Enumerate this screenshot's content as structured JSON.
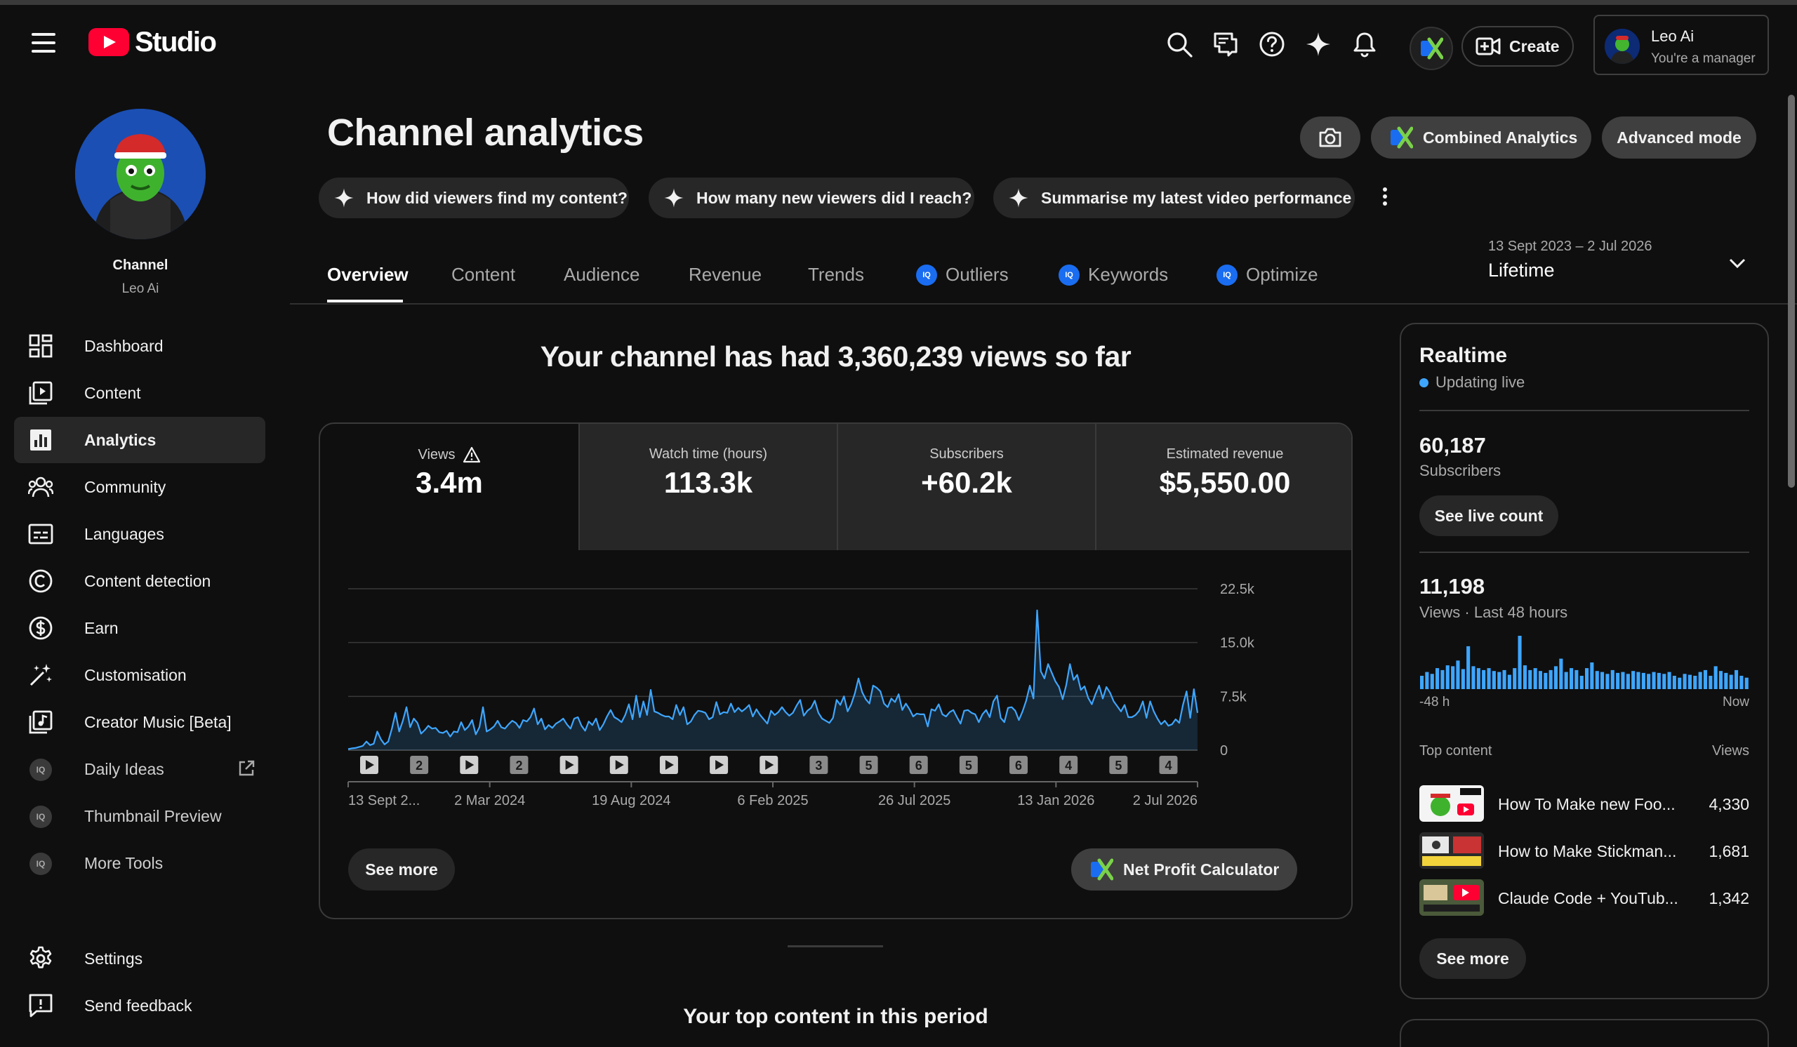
{
  "app": {
    "brand": "Studio"
  },
  "header": {
    "create_label": "Create",
    "account_name": "Leo Ai",
    "account_role": "You're a manager"
  },
  "channel": {
    "title": "Channel",
    "name": "Leo Ai"
  },
  "sidebar": {
    "items": [
      {
        "label": "Dashboard",
        "icon": "dashboard-icon"
      },
      {
        "label": "Content",
        "icon": "content-icon"
      },
      {
        "label": "Analytics",
        "icon": "analytics-icon",
        "active": true
      },
      {
        "label": "Community",
        "icon": "community-icon"
      },
      {
        "label": "Languages",
        "icon": "languages-icon"
      },
      {
        "label": "Content detection",
        "icon": "copyright-icon"
      },
      {
        "label": "Earn",
        "icon": "dollar-icon"
      },
      {
        "label": "Customisation",
        "icon": "magic-wand-icon"
      },
      {
        "label": "Creator Music [Beta]",
        "icon": "music-icon"
      },
      {
        "label": "Daily Ideas",
        "icon": "iq-icon"
      },
      {
        "label": "Thumbnail Preview",
        "icon": "iq-icon"
      },
      {
        "label": "More Tools",
        "icon": "iq-icon"
      },
      {
        "label": "Settings",
        "icon": "gear-icon"
      },
      {
        "label": "Send feedback",
        "icon": "feedback-icon"
      }
    ],
    "iq_text": "IQ"
  },
  "main": {
    "title": "Channel analytics",
    "combined_label": "Combined Analytics",
    "advanced_label": "Advanced mode",
    "suggestions": [
      "How did viewers find my content?",
      "How many new viewers did I reach?",
      "Summarise my latest video performance"
    ],
    "tabs": [
      "Overview",
      "Content",
      "Audience",
      "Revenue",
      "Trends",
      "Outliers",
      "Keywords",
      "Optimize"
    ],
    "date_range": {
      "range": "13 Sept 2023 – 2 Jul 2026",
      "label": "Lifetime"
    },
    "headline": "Your channel has had 3,360,239 views so far",
    "metrics": [
      {
        "label": "Views",
        "value": "3.4m",
        "warning": true
      },
      {
        "label": "Watch time (hours)",
        "value": "113.3k"
      },
      {
        "label": "Subscribers",
        "value": "+60.2k"
      },
      {
        "label": "Estimated revenue",
        "value": "$5,550.00"
      }
    ],
    "see_more": "See more",
    "npc_label": "Net Profit Calculator",
    "section_title": "Your top content in this period"
  },
  "chart_data": {
    "type": "area",
    "title": "",
    "xlabel": "",
    "ylabel": "",
    "y_ticks": [
      "22.5k",
      "15.0k",
      "7.5k",
      "0"
    ],
    "ylim": [
      0,
      22500
    ],
    "x_ticks": [
      "13 Sept 2...",
      "2 Mar 2024",
      "19 Aug 2024",
      "6 Feb 2025",
      "26 Jul 2025",
      "13 Jan 2026",
      "2 Jul 2026"
    ],
    "grid": true,
    "series": [
      {
        "color": "#3ea6ff",
        "values": [
          150,
          250,
          300,
          450,
          600,
          1200,
          700,
          900,
          2600,
          1500,
          800,
          1200,
          3000,
          5200,
          2600,
          4100,
          6000,
          3200,
          4400,
          3800,
          2300,
          2800,
          3400,
          3000,
          3100,
          2500,
          2400,
          2700,
          1900,
          2600,
          2500,
          3900,
          2800,
          3300,
          4200,
          2200,
          3200,
          6000,
          2600,
          2900,
          3300,
          4100,
          3200,
          3000,
          3600,
          4100,
          3800,
          3100,
          4200,
          4000,
          4600,
          5800,
          3600,
          4400,
          2900,
          3500,
          3100,
          3700,
          4000,
          4400,
          3600,
          3000,
          4400,
          4600,
          3400,
          2700,
          4000,
          3500,
          4400,
          2800,
          3600,
          4700,
          5600,
          4600,
          4300,
          3900,
          4900,
          6400,
          4300,
          7600,
          4600,
          6800,
          4900,
          8400,
          5400,
          5200,
          4900,
          4700,
          4700,
          4300,
          6300,
          4900,
          6000,
          3600,
          4000,
          4900,
          5500,
          5400,
          5200,
          4300,
          4600,
          6700,
          5000,
          5300,
          5200,
          6500,
          5300,
          5900,
          5400,
          5800,
          6300,
          4700,
          5700,
          4900,
          4300,
          3700,
          5500,
          4900,
          5300,
          6000,
          5300,
          4800,
          5200,
          6200,
          7000,
          4800,
          5500,
          5900,
          6900,
          5200,
          4400,
          4100,
          3800,
          4500,
          7000,
          6300,
          7500,
          5400,
          6400,
          7900,
          10000,
          8100,
          7100,
          6500,
          9000,
          8700,
          8200,
          6500,
          6000,
          7200,
          6700,
          7800,
          5600,
          6500,
          5700,
          4700,
          5100,
          5000,
          5000,
          3300,
          5700,
          5500,
          6400,
          5000,
          4700,
          5300,
          5600,
          4600,
          3700,
          5500,
          5600,
          5200,
          5000,
          3900,
          5000,
          5600,
          4600,
          6800,
          7600,
          4500,
          3900,
          5900,
          6000,
          5500,
          4200,
          5400,
          6900,
          9000,
          7200,
          19500,
          11000,
          10000,
          12000,
          10800,
          9600,
          8800,
          7100,
          9100,
          12000,
          9800,
          10500,
          8400,
          8900,
          7300,
          6400,
          7800,
          9000,
          7200,
          8800,
          8000,
          6800,
          6100,
          5400,
          6300,
          4600,
          4600,
          4900,
          5500,
          6800,
          4500,
          6800,
          5400,
          4400,
          3600,
          4100,
          3400,
          3600,
          4300,
          3800,
          6300,
          8200,
          4500,
          8500,
          5200
        ]
      }
    ],
    "markers": [
      {
        "date": "Oct 2023",
        "kind": "video"
      },
      {
        "date": "Feb 2024",
        "kind": "count",
        "label": "2"
      },
      {
        "date": "Mar 2024",
        "kind": "video"
      },
      {
        "date": "Apr 2024",
        "kind": "count",
        "label": "2"
      },
      {
        "date": "Jul 2024",
        "kind": "video"
      },
      {
        "date": "Sep 2024",
        "kind": "video"
      },
      {
        "date": "Mar 2025",
        "kind": "video"
      },
      {
        "date": "May 2025",
        "kind": "video"
      },
      {
        "date": "Oct 2025",
        "kind": "video"
      },
      {
        "date": "Nov 2025",
        "kind": "count",
        "label": "3"
      },
      {
        "date": "Jan 2026",
        "kind": "count",
        "label": "5"
      },
      {
        "date": "Feb 2026",
        "kind": "count",
        "label": "6"
      },
      {
        "date": "Mar 2026",
        "kind": "count",
        "label": "5"
      },
      {
        "date": "Apr 2026",
        "kind": "count",
        "label": "6"
      },
      {
        "date": "May 2026",
        "kind": "count",
        "label": "4"
      },
      {
        "date": "Jun 2026",
        "kind": "count",
        "label": "5"
      },
      {
        "date": "Jul 2026",
        "kind": "count",
        "label": "4"
      }
    ]
  },
  "realtime": {
    "title": "Realtime",
    "status": "Updating live",
    "subscribers_value": "60,187",
    "subscribers_label": "Subscribers",
    "live_count_label": "See live count",
    "views_value": "11,198",
    "views_label": "Views · Last 48 hours",
    "axis_left": "-48 h",
    "axis_right": "Now",
    "bars": [
      14,
      18,
      16,
      22,
      20,
      25,
      24,
      30,
      21,
      45,
      24,
      22,
      20,
      22,
      19,
      18,
      20,
      15,
      22,
      56,
      25,
      20,
      22,
      19,
      17,
      20,
      24,
      32,
      18,
      22,
      20,
      14,
      22,
      28,
      19,
      18,
      16,
      20,
      17,
      18,
      16,
      19,
      18,
      17,
      16,
      18,
      17,
      16,
      18,
      14,
      12,
      16,
      15,
      14,
      18,
      20,
      14,
      24,
      19,
      17,
      15,
      20,
      14,
      12
    ],
    "top_content_label": "Top content",
    "views_col_label": "Views",
    "top_content": [
      {
        "title": "How To Make new Foo...",
        "views": "4,330"
      },
      {
        "title": "How to Make Stickman...",
        "views": "1,681"
      },
      {
        "title": "Claude Code + YouTub...",
        "views": "1,342"
      }
    ],
    "see_more": "See more"
  }
}
